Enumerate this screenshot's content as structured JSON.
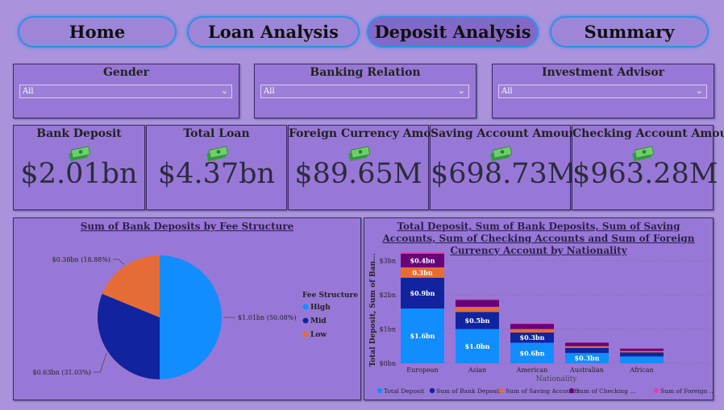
{
  "nav": {
    "home": "Home",
    "loan": "Loan Analysis",
    "deposit": "Deposit Analysis",
    "summary": "Summary"
  },
  "slicers": {
    "gender": {
      "title": "Gender",
      "value": "All"
    },
    "banking": {
      "title": "Banking Relation",
      "value": "All"
    },
    "advisor": {
      "title": "Investment Advisor",
      "value": "All"
    }
  },
  "kpis": {
    "bank_deposit": {
      "title": "Bank Deposit",
      "value": "$2.01bn"
    },
    "total_loan": {
      "title": "Total Loan",
      "value": "$4.37bn"
    },
    "foreign_currency": {
      "title": "Foreign Currency Amount",
      "value": "$89.65M"
    },
    "saving": {
      "title": "Saving Account Amount",
      "value": "$698.73M"
    },
    "checking": {
      "title": "Checking Account Amount",
      "value": "$963.28M"
    }
  },
  "colors": {
    "high": "#118dff",
    "mid": "#12239e",
    "low": "#e66c37",
    "checking": "#6b007b",
    "foreign": "#e044a7"
  },
  "chart_data": [
    {
      "type": "pie",
      "title": "Sum of Bank Deposits by Fee Structure",
      "legend_title": "Fee Structure",
      "legend_placement": "right",
      "categories": [
        "High",
        "Mid",
        "Low"
      ],
      "values": [
        1.01,
        0.63,
        0.38
      ],
      "data_labels": [
        "$1.01bn (50.08%)",
        "$0.63bn (31.03%)",
        "$0.38bn (18.88%)"
      ]
    },
    {
      "type": "bar",
      "stacked": true,
      "title": "Total Deposit, Sum of Bank Deposits, Sum of Saving Accounts, Sum of Checking Accounts and Sum of Foreign Currency Account by Nationality",
      "xlabel": "Nationality",
      "ylabel": "Total Deposit, Sum of Ban...",
      "categories": [
        "European",
        "Asian",
        "American",
        "Australian",
        "African"
      ],
      "yticks": [
        "$0bn",
        "$1bn",
        "$2bn",
        "$3bn"
      ],
      "ylim": [
        0,
        3.2
      ],
      "legend_placement": "bottom",
      "series": [
        {
          "name": "Total Deposit",
          "values": [
            1.6,
            1.0,
            0.6,
            0.3,
            0.2
          ],
          "labels": [
            "$1.6bn",
            "$1.0bn",
            "$0.6bn",
            "$0.3bn",
            ""
          ]
        },
        {
          "name": "Sum of Bank Deposits",
          "values": [
            0.9,
            0.5,
            0.3,
            0.15,
            0.12
          ],
          "labels": [
            "$0.9bn",
            "$0.5bn",
            "$0.3bn",
            "",
            ""
          ]
        },
        {
          "name": "Sum of Saving Accounts",
          "values": [
            0.3,
            0.15,
            0.1,
            0.05,
            0.04
          ],
          "labels": [
            "0.3bn",
            "",
            "",
            "",
            ""
          ]
        },
        {
          "name": "Sum of Checking ...",
          "values": [
            0.4,
            0.2,
            0.15,
            0.1,
            0.07
          ],
          "labels": [
            "$0.4bn",
            "",
            "",
            "",
            ""
          ]
        },
        {
          "name": "Sum of Foreign ...",
          "values": [
            0.05,
            0.03,
            0.02,
            0.01,
            0.01
          ],
          "labels": [
            "",
            "",
            "",
            "",
            ""
          ]
        }
      ]
    }
  ]
}
